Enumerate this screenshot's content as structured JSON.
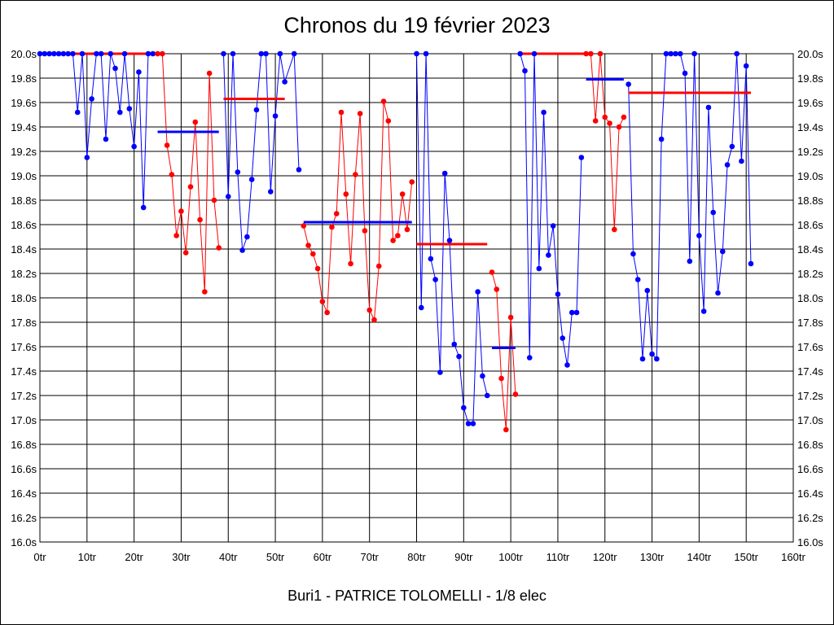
{
  "chart_data": {
    "type": "line",
    "title": "Chronos du 19 février 2023",
    "subtitle": "Buri1 - PATRICE TOLOMELLI - 1/8 elec",
    "xlim": [
      0,
      160
    ],
    "ylim": [
      16.0,
      20.0
    ],
    "x_ticks": [
      "0tr",
      "10tr",
      "20tr",
      "30tr",
      "40tr",
      "50tr",
      "60tr",
      "70tr",
      "80tr",
      "90tr",
      "100tr",
      "110tr",
      "120tr",
      "130tr",
      "140tr",
      "150tr",
      "160tr"
    ],
    "y_ticks": [
      "16.0s",
      "16.2s",
      "16.4s",
      "16.6s",
      "16.8s",
      "17.0s",
      "17.2s",
      "17.4s",
      "17.6s",
      "17.8s",
      "18.0s",
      "18.2s",
      "18.4s",
      "18.6s",
      "18.8s",
      "19.0s",
      "19.2s",
      "19.4s",
      "19.6s",
      "19.8s",
      "20.0s"
    ],
    "grid": true,
    "colors": {
      "blue": "#0000ff",
      "red": "#ff0000"
    },
    "stints": [
      {
        "color": "blue",
        "points": [
          [
            0,
            20.0
          ],
          [
            1,
            20.0
          ],
          [
            2,
            20.0
          ],
          [
            3,
            20.0
          ],
          [
            4,
            20.0
          ],
          [
            5,
            20.0
          ],
          [
            6,
            20.0
          ],
          [
            7,
            20.0
          ],
          [
            8,
            19.52
          ],
          [
            9,
            20.0
          ],
          [
            10,
            19.15
          ],
          [
            11,
            19.63
          ],
          [
            12,
            20.0
          ],
          [
            13,
            20.0
          ],
          [
            14,
            19.3
          ],
          [
            15,
            20.0
          ],
          [
            16,
            19.88
          ],
          [
            17,
            19.52
          ],
          [
            18,
            20.0
          ],
          [
            19,
            19.55
          ],
          [
            20,
            19.24
          ],
          [
            21,
            19.85
          ],
          [
            22,
            18.74
          ],
          [
            23,
            20.0
          ],
          [
            24,
            20.0
          ]
        ]
      },
      {
        "color": "red",
        "points": [
          [
            25,
            20.0
          ],
          [
            26,
            20.0
          ],
          [
            27,
            19.25
          ],
          [
            28,
            19.01
          ],
          [
            29,
            18.51
          ],
          [
            30,
            18.71
          ],
          [
            31,
            18.37
          ],
          [
            32,
            18.91
          ],
          [
            33,
            19.44
          ],
          [
            34,
            18.64
          ],
          [
            35,
            18.05
          ],
          [
            36,
            19.84
          ],
          [
            37,
            18.8
          ],
          [
            38,
            18.41
          ]
        ]
      },
      {
        "color": "blue",
        "points": [
          [
            39,
            20.0
          ],
          [
            40,
            18.83
          ],
          [
            41,
            20.0
          ],
          [
            42,
            19.03
          ],
          [
            43,
            18.39
          ],
          [
            44,
            18.5
          ],
          [
            45,
            18.97
          ],
          [
            46,
            19.54
          ],
          [
            47,
            20.0
          ],
          [
            48,
            20.0
          ],
          [
            49,
            18.87
          ],
          [
            50,
            19.49
          ],
          [
            51,
            20.0
          ],
          [
            52,
            19.77
          ],
          [
            54,
            20.0
          ],
          [
            55,
            19.05
          ]
        ]
      },
      {
        "color": "red",
        "points": [
          [
            56,
            18.59
          ],
          [
            57,
            18.43
          ],
          [
            58,
            18.36
          ],
          [
            59,
            18.24
          ],
          [
            60,
            17.97
          ],
          [
            61,
            17.88
          ],
          [
            62,
            18.58
          ],
          [
            63,
            18.69
          ],
          [
            64,
            19.52
          ],
          [
            65,
            18.85
          ],
          [
            66,
            18.28
          ],
          [
            67,
            19.01
          ],
          [
            68,
            19.51
          ],
          [
            69,
            18.55
          ],
          [
            70,
            17.9
          ],
          [
            71,
            17.82
          ],
          [
            72,
            18.26
          ],
          [
            73,
            19.61
          ],
          [
            74,
            19.45
          ],
          [
            75,
            18.47
          ],
          [
            76,
            18.51
          ],
          [
            77,
            18.85
          ],
          [
            78,
            18.56
          ],
          [
            79,
            18.95
          ]
        ]
      },
      {
        "color": "blue",
        "points": [
          [
            80,
            20.0
          ],
          [
            81,
            17.92
          ],
          [
            82,
            20.0
          ],
          [
            83,
            18.32
          ],
          [
            84,
            18.15
          ],
          [
            85,
            17.39
          ],
          [
            86,
            19.02
          ],
          [
            87,
            18.47
          ],
          [
            88,
            17.62
          ],
          [
            89,
            17.52
          ],
          [
            90,
            17.1
          ],
          [
            91,
            16.97
          ],
          [
            92,
            16.97
          ],
          [
            93,
            18.05
          ],
          [
            94,
            17.36
          ],
          [
            95,
            17.2
          ]
        ]
      },
      {
        "color": "red",
        "points": [
          [
            96,
            18.21
          ],
          [
            97,
            18.07
          ],
          [
            98,
            17.34
          ],
          [
            99,
            16.92
          ],
          [
            100,
            17.84
          ],
          [
            101,
            17.21
          ]
        ]
      },
      {
        "color": "blue",
        "points": [
          [
            102,
            20.0
          ],
          [
            103,
            19.86
          ],
          [
            104,
            17.51
          ],
          [
            105,
            20.0
          ],
          [
            106,
            18.24
          ],
          [
            107,
            19.52
          ],
          [
            108,
            18.35
          ],
          [
            109,
            18.59
          ],
          [
            110,
            18.03
          ],
          [
            111,
            17.67
          ],
          [
            112,
            17.45
          ],
          [
            113,
            17.88
          ],
          [
            114,
            17.88
          ],
          [
            115,
            19.15
          ]
        ]
      },
      {
        "color": "red",
        "points": [
          [
            116,
            20.0
          ],
          [
            117,
            20.0
          ],
          [
            118,
            19.45
          ],
          [
            119,
            20.0
          ],
          [
            120,
            19.48
          ],
          [
            121,
            19.43
          ],
          [
            122,
            18.56
          ],
          [
            123,
            19.4
          ],
          [
            124,
            19.48
          ]
        ]
      },
      {
        "color": "blue",
        "points": [
          [
            125,
            19.75
          ],
          [
            126,
            18.36
          ],
          [
            127,
            18.15
          ],
          [
            128,
            17.5
          ],
          [
            129,
            18.06
          ],
          [
            130,
            17.54
          ],
          [
            131,
            17.5
          ],
          [
            132,
            19.3
          ],
          [
            133,
            20.0
          ],
          [
            134,
            20.0
          ],
          [
            135,
            20.0
          ],
          [
            136,
            20.0
          ],
          [
            137,
            19.84
          ],
          [
            138,
            18.3
          ],
          [
            139,
            20.0
          ],
          [
            140,
            18.51
          ],
          [
            141,
            17.89
          ],
          [
            142,
            19.56
          ],
          [
            143,
            18.7
          ],
          [
            144,
            18.04
          ],
          [
            145,
            18.38
          ],
          [
            146,
            19.09
          ],
          [
            147,
            19.24
          ],
          [
            148,
            20.0
          ],
          [
            149,
            19.12
          ],
          [
            150,
            19.9
          ],
          [
            151,
            18.28
          ]
        ]
      }
    ],
    "averages": [
      {
        "color": "red",
        "from": 0,
        "to": 25,
        "value": 20.0
      },
      {
        "color": "blue",
        "from": 25,
        "to": 38,
        "value": 19.36
      },
      {
        "color": "red",
        "from": 39,
        "to": 52,
        "value": 19.63
      },
      {
        "color": "blue",
        "from": 56,
        "to": 79,
        "value": 18.62
      },
      {
        "color": "red",
        "from": 80,
        "to": 95,
        "value": 18.44
      },
      {
        "color": "blue",
        "from": 96,
        "to": 101,
        "value": 17.59
      },
      {
        "color": "red",
        "from": 102,
        "to": 115.5,
        "value": 20.0
      },
      {
        "color": "blue",
        "from": 116,
        "to": 124,
        "value": 19.79
      },
      {
        "color": "red",
        "from": 125,
        "to": 151,
        "value": 19.68
      }
    ]
  }
}
